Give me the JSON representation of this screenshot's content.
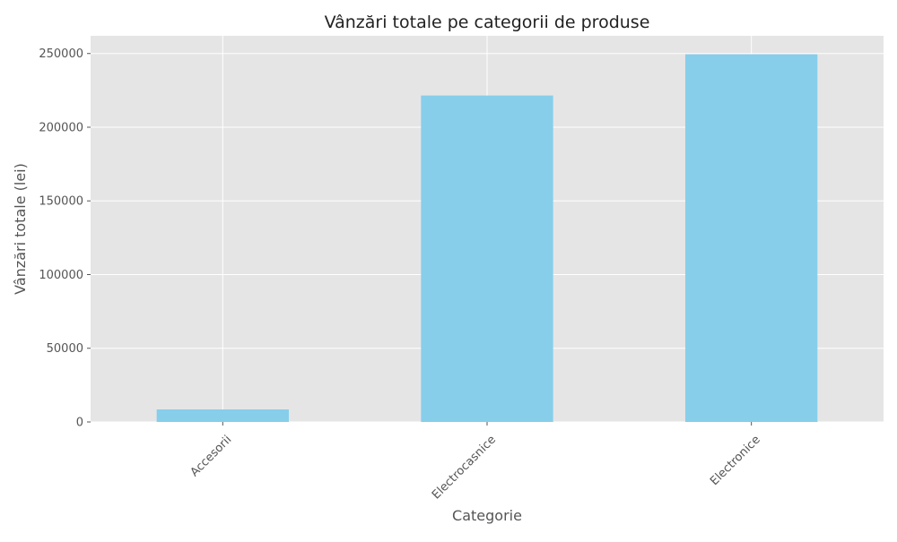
{
  "chart_data": {
    "type": "bar",
    "title": "Vânzări totale pe categorii de produse",
    "xlabel": "Categorie",
    "ylabel": "Vânzări totale (lei)",
    "categories": [
      "Accesorii",
      "Electrocasnice",
      "Electronice"
    ],
    "values": [
      8500,
      221500,
      249500
    ],
    "ylim": [
      0,
      262000
    ],
    "yticks": [
      0,
      50000,
      100000,
      150000,
      200000,
      250000
    ],
    "grid": true,
    "colors": {
      "bar": "#87CEEB",
      "plot_background": "#E5E5E5",
      "grid": "#FFFFFF"
    }
  }
}
